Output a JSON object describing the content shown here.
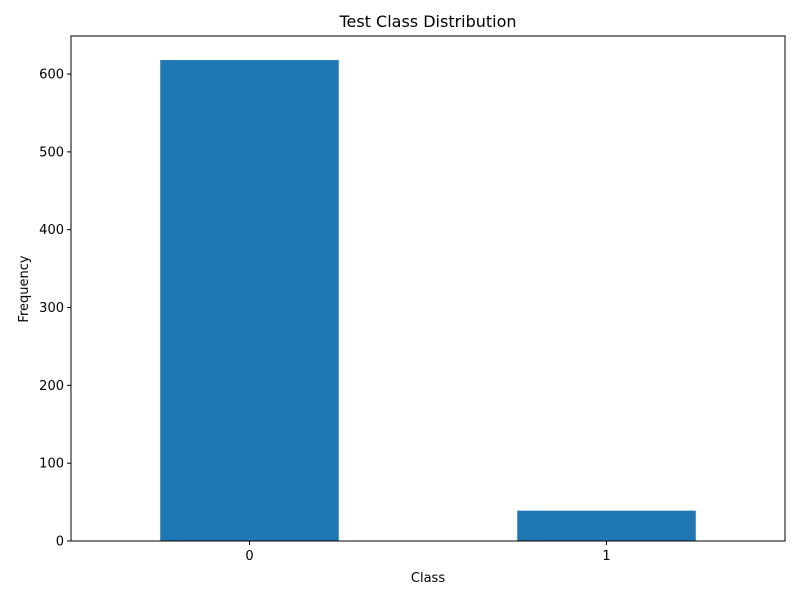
{
  "chart_data": {
    "type": "bar",
    "title": "Test Class Distribution",
    "xlabel": "Class",
    "ylabel": "Frequency",
    "categories": [
      "0",
      "1"
    ],
    "values": [
      618,
      39
    ],
    "ylim": [
      0,
      648.9
    ],
    "yticks": [
      0,
      100,
      200,
      300,
      400,
      500,
      600
    ],
    "bar_color": "#1f77b4",
    "grid": false,
    "legend": "none"
  }
}
